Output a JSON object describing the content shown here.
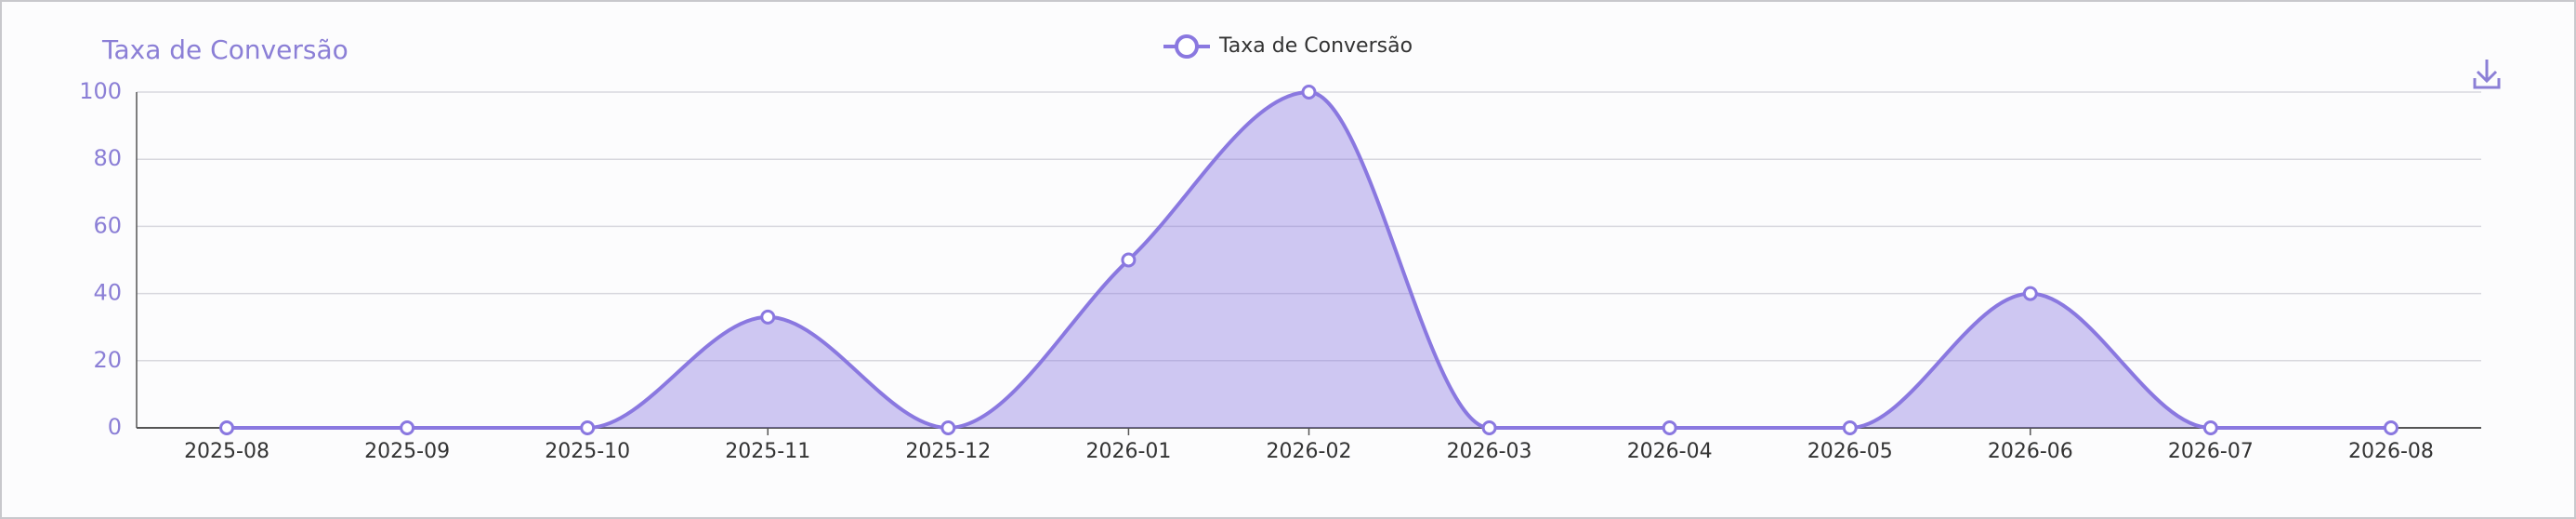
{
  "chart_data": {
    "type": "area",
    "title": "Taxa de Conversão",
    "categories": [
      "2025-08",
      "2025-09",
      "2025-10",
      "2025-11",
      "2025-12",
      "2026-01",
      "2026-02",
      "2026-03",
      "2026-04",
      "2026-05",
      "2026-06",
      "2026-07",
      "2026-08"
    ],
    "series": [
      {
        "name": "Taxa de Conversão",
        "color": "#8a78e0",
        "values": [
          0,
          0,
          0,
          33,
          0,
          50,
          100,
          0,
          0,
          0,
          40,
          0,
          0
        ]
      }
    ],
    "ylim": [
      0,
      100
    ],
    "yticks": [
      0,
      20,
      40,
      60,
      80,
      100
    ],
    "grid": true,
    "legend": "top"
  }
}
